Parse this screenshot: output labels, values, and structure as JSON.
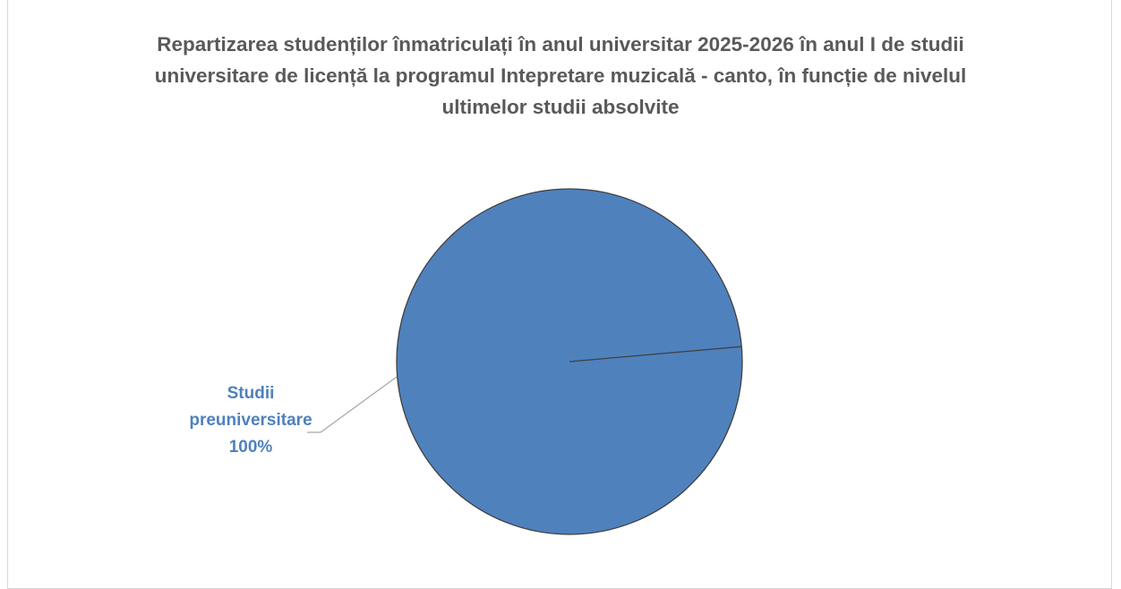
{
  "chart_data": {
    "type": "pie",
    "title": "Repartizarea studenților înmatriculați în anul universitar 2025-2026 în anul I de studii universitare de licență la programul Intepretare muzicală - canto, în funcție de nivelul ultimelor studii absolvite",
    "categories": [
      "Studii preuniversitare"
    ],
    "values": [
      100
    ],
    "value_labels": [
      "100%"
    ],
    "colors": [
      "#4f81bd"
    ]
  }
}
